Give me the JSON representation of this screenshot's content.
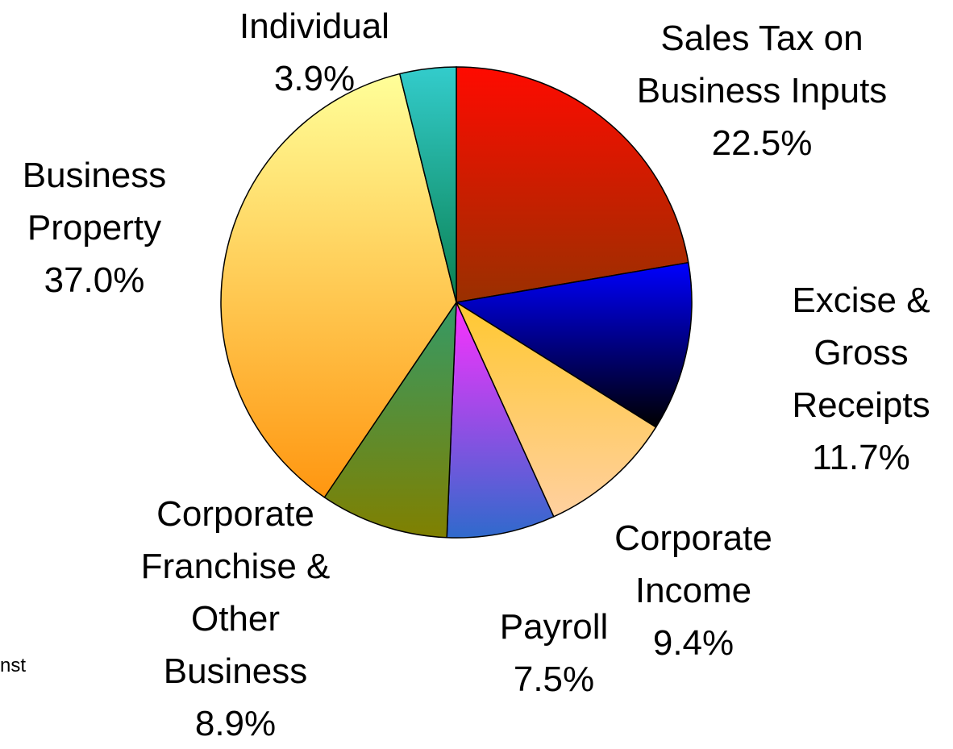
{
  "chart_data": {
    "type": "pie",
    "categories": [
      "Sales Tax on Business Inputs",
      "Excise & Gross Receipts",
      "Corporate Income",
      "Payroll",
      "Corporate Franchise & Other Business",
      "Business Property",
      "Individual"
    ],
    "values": [
      22.5,
      11.7,
      9.4,
      7.5,
      8.9,
      37.0,
      3.9
    ],
    "value_labels": [
      "22.5%",
      "11.7%",
      "9.4%",
      "7.5%",
      "8.9%",
      "37.0%",
      "3.9%"
    ],
    "colors": [
      [
        "#ff0a00",
        "#993000"
      ],
      [
        "#0000ff",
        "#000000"
      ],
      [
        "#ffc830",
        "#ffd0a0"
      ],
      [
        "#ff30ff",
        "#2f6acc"
      ],
      [
        "#349a66",
        "#808000"
      ],
      [
        "#ffff99",
        "#ff9610"
      ],
      [
        "#33cccc",
        "#0a8050"
      ]
    ],
    "fragment": "nst"
  }
}
